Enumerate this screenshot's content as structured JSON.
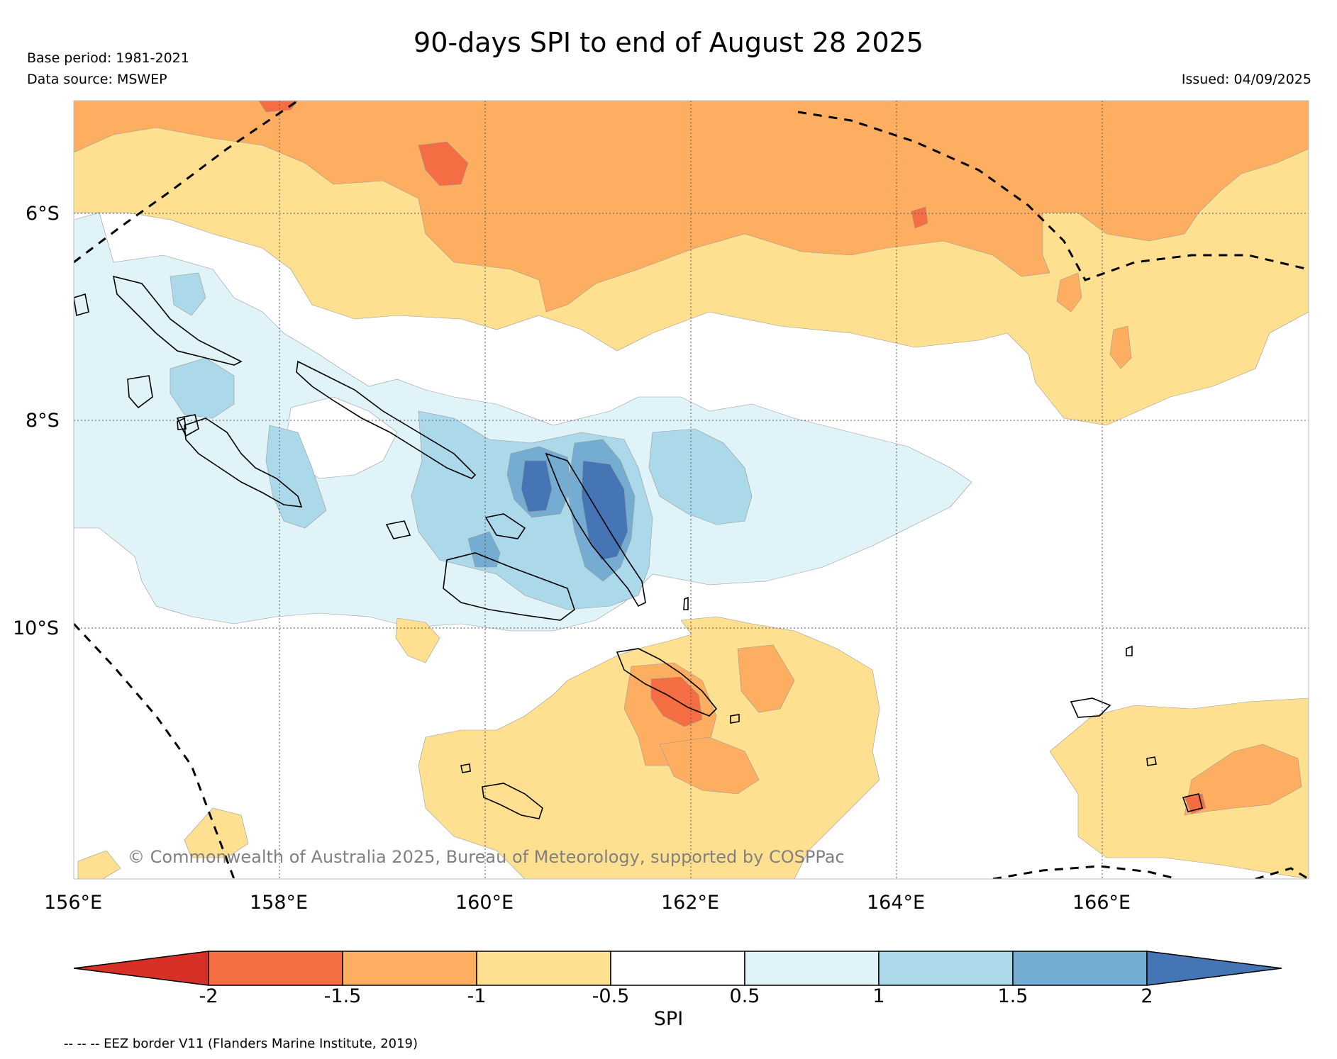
{
  "title": "90-days SPI to end of August 28 2025",
  "base_period": "Base period: 1981-2021",
  "data_source": "Data source: MSWEP",
  "issued": "Issued: 04/09/2025",
  "copyright": "© Commonwealth of Australia 2025, Bureau of Meteorology, supported by COSPPac",
  "footnote": "-- -- -- EEZ border V11 (Flanders Marine Institute, 2019)",
  "map": {
    "lon_labels": [
      "156°E",
      "158°E",
      "160°E",
      "162°E",
      "164°E",
      "166°E"
    ],
    "lat_labels": [
      "6°S",
      "8°S",
      "10°S"
    ],
    "extent": {
      "lon_min": 156,
      "lon_max": 168,
      "lat_top": -4.9,
      "lat_bottom": -12.4
    },
    "gridlines": true
  },
  "colorbar": {
    "label": "SPI",
    "ticks": [
      "-2",
      "-1.5",
      "-1",
      "-0.5",
      "0.5",
      "1",
      "1.5",
      "2"
    ],
    "classes": [
      {
        "range": "< -2",
        "color": "#d73027"
      },
      {
        "range": "-2 to -1.5",
        "color": "#f46d43"
      },
      {
        "range": "-1.5 to -1",
        "color": "#fdae61"
      },
      {
        "range": "-1 to -0.5",
        "color": "#fee090"
      },
      {
        "range": "-0.5 to 0.5",
        "color": "#ffffff"
      },
      {
        "range": "0.5 to 1",
        "color": "#e0f3f8"
      },
      {
        "range": "1 to 1.5",
        "color": "#abd9e9"
      },
      {
        "range": "1.5 to 2",
        "color": "#74add1"
      },
      {
        "range": "> 2",
        "color": "#4575b4"
      }
    ]
  }
}
